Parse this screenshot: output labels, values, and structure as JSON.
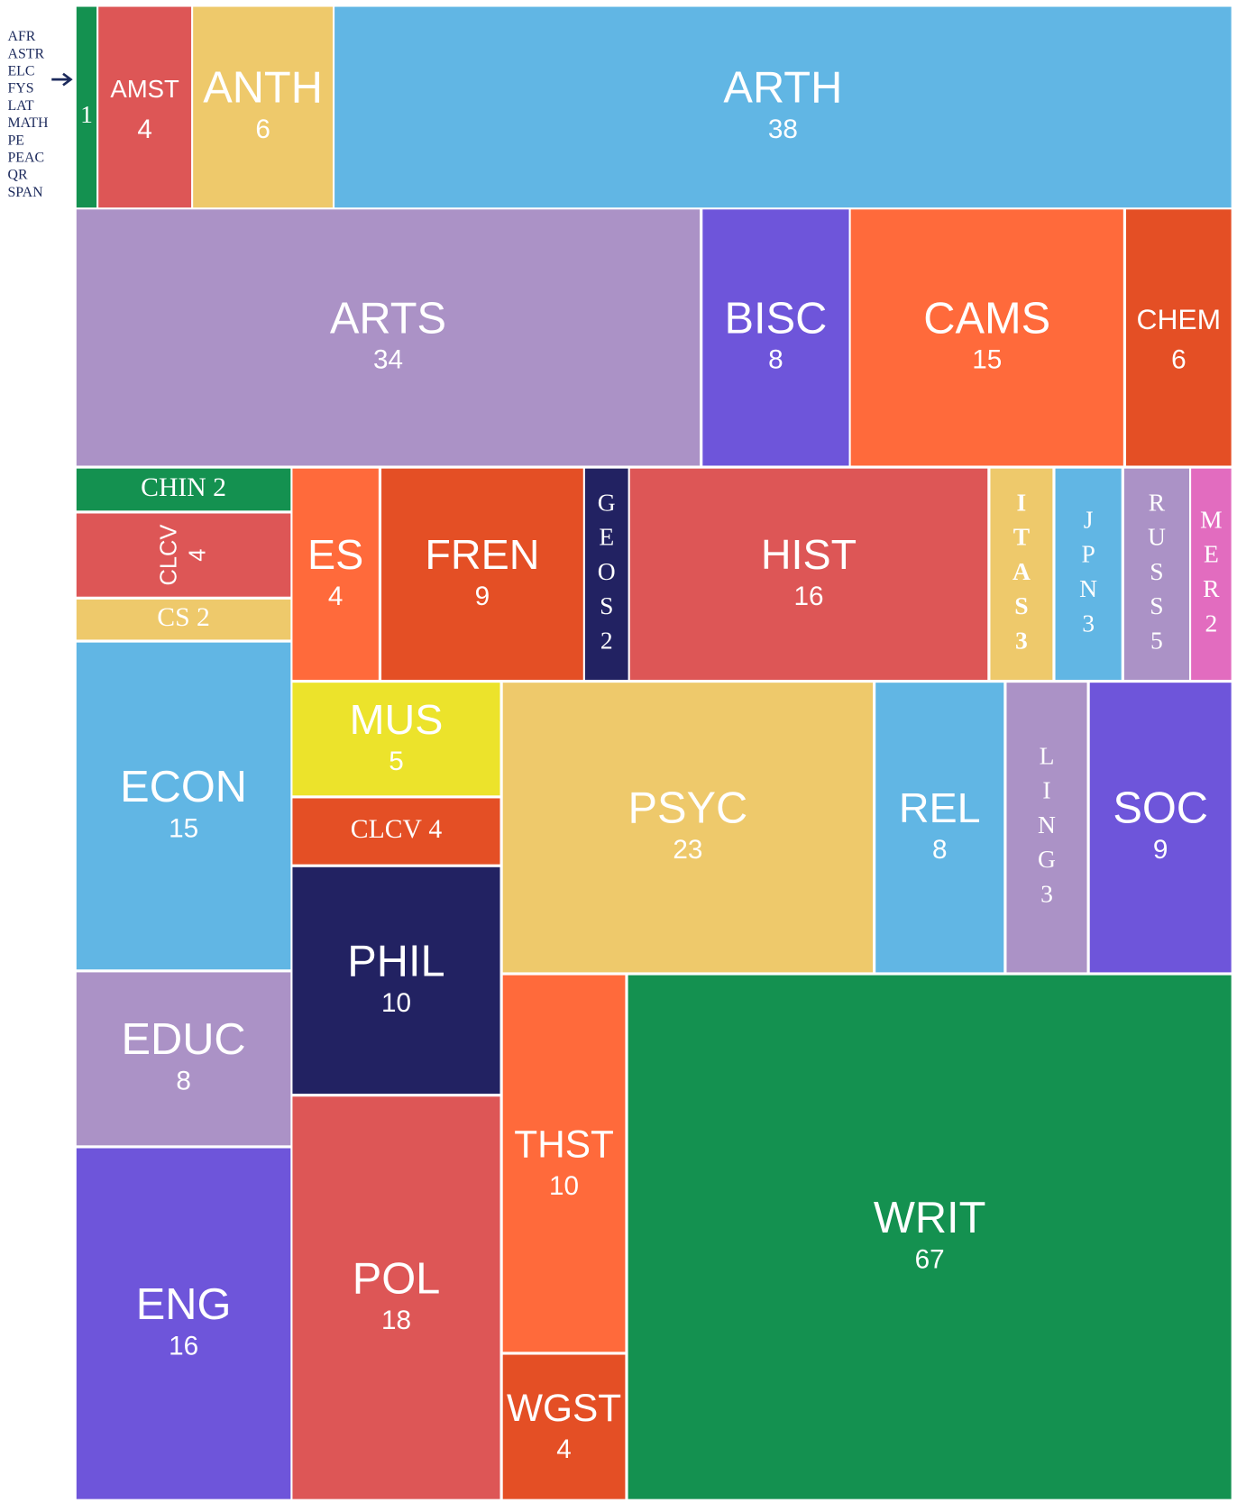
{
  "chart_data": {
    "type": "treemap",
    "small_group": {
      "labels": [
        "AFR",
        "ASTR",
        "ELC",
        "FYS",
        "LAT",
        "MATH",
        "PE",
        "PEAC",
        "QR",
        "SPAN"
      ],
      "value": 1,
      "color": "#149150"
    },
    "nodes": [
      {
        "label": "AMST",
        "value": 4,
        "color": "#dd5656"
      },
      {
        "label": "ANTH",
        "value": 6,
        "color": "#eec96b"
      },
      {
        "label": "ARTH",
        "value": 38,
        "color": "#61b6e4"
      },
      {
        "label": "ARTS",
        "value": 34,
        "color": "#ab92c6"
      },
      {
        "label": "BISC",
        "value": 8,
        "color": "#6e55da"
      },
      {
        "label": "CAMS",
        "value": 15,
        "color": "#ff6a3b"
      },
      {
        "label": "CHEM",
        "value": 6,
        "color": "#e44f25"
      },
      {
        "label": "CHIN",
        "value": 2,
        "color": "#149150"
      },
      {
        "label": "CLCV",
        "value": 4,
        "color": "#dd5656"
      },
      {
        "label": "CS",
        "value": 2,
        "color": "#eec96b"
      },
      {
        "label": "ES",
        "value": 4,
        "color": "#ff6a3b"
      },
      {
        "label": "FREN",
        "value": 9,
        "color": "#e44f25"
      },
      {
        "label": "GEOS",
        "value": 2,
        "color": "#222262"
      },
      {
        "label": "HIST",
        "value": 16,
        "color": "#dd5656"
      },
      {
        "label": "ITAS",
        "value": 3,
        "color": "#eec96b"
      },
      {
        "label": "JPN",
        "value": 3,
        "color": "#61b6e4"
      },
      {
        "label": "RUSS",
        "value": 5,
        "color": "#ab92c6"
      },
      {
        "label": "MER",
        "value": 2,
        "color": "#e26cbf"
      },
      {
        "label": "ECON",
        "value": 15,
        "color": "#61b6e4"
      },
      {
        "label": "MUS",
        "value": 5,
        "color": "#ece32b"
      },
      {
        "label": "CLCV",
        "value": 4,
        "color": "#e44f25"
      },
      {
        "label": "PHIL",
        "value": 10,
        "color": "#222262"
      },
      {
        "label": "PSYC",
        "value": 23,
        "color": "#eec96b"
      },
      {
        "label": "REL",
        "value": 8,
        "color": "#61b6e4"
      },
      {
        "label": "LING",
        "value": 3,
        "color": "#ab92c6"
      },
      {
        "label": "SOC",
        "value": 9,
        "color": "#6e55da"
      },
      {
        "label": "EDUC",
        "value": 8,
        "color": "#ab92c6"
      },
      {
        "label": "ENG",
        "value": 16,
        "color": "#6e55da"
      },
      {
        "label": "POL",
        "value": 18,
        "color": "#dd5656"
      },
      {
        "label": "THST",
        "value": 10,
        "color": "#ff6a3b"
      },
      {
        "label": "WGST",
        "value": 4,
        "color": "#e44f25"
      },
      {
        "label": "WRIT",
        "value": 67,
        "color": "#149150"
      }
    ]
  }
}
